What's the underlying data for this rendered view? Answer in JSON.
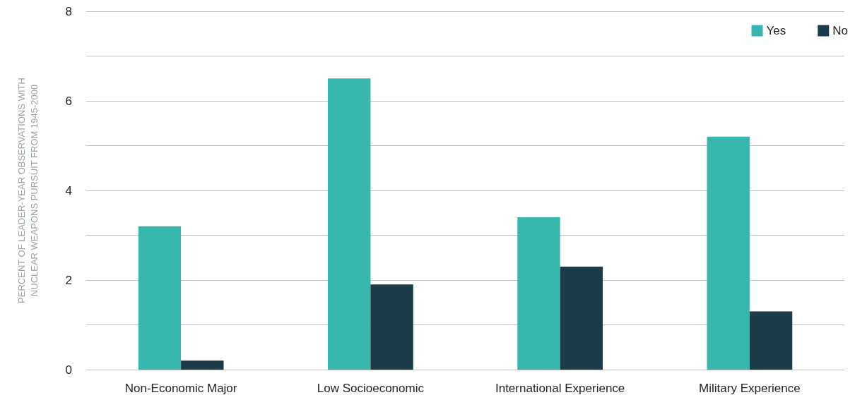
{
  "chart_data": {
    "type": "bar",
    "ylabel": "PERCENT OF LEADER-YEAR OBSERVATIONS WITH\nNUCLEAR WEAPONS PURSUIT FROM 1945-2000",
    "categories": [
      "Non-Economic Major",
      "Low Socioeconomic",
      "International Experience",
      "Military Experience"
    ],
    "series": [
      {
        "name": "Yes",
        "color": "#37b6ad",
        "values": [
          3.2,
          6.5,
          3.4,
          5.2
        ]
      },
      {
        "name": "No",
        "color": "#1a3b47",
        "values": [
          0.2,
          1.9,
          2.3,
          1.3
        ]
      }
    ],
    "ylim": [
      0,
      8
    ],
    "yticks": [
      0,
      {
        "value": 1,
        "label": null
      },
      2,
      {
        "value": 3,
        "label": null
      },
      4,
      {
        "value": 5,
        "label": null
      },
      6,
      {
        "value": 7,
        "label": null
      },
      8
    ],
    "grid": "y",
    "legend": "top right"
  }
}
